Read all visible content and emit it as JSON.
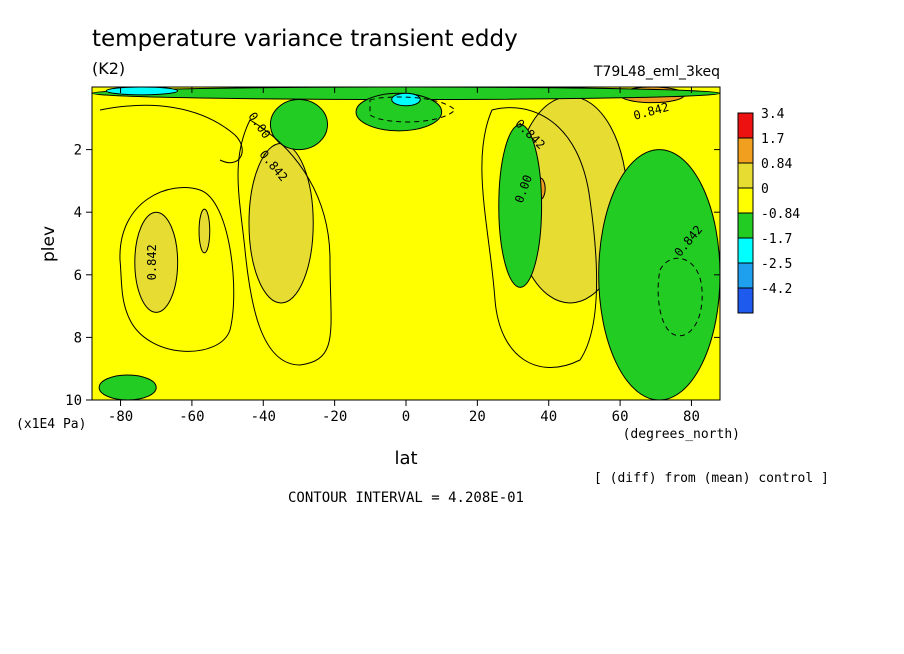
{
  "chart_data": {
    "type": "heatmap",
    "title": "temperature variance transient eddy",
    "units_label": "(K2)",
    "experiment_label": "T79L48_eml_3keq",
    "xlabel": "lat",
    "x_units": "(degrees_north)",
    "ylabel": "plev",
    "y_units": "(x1E4 Pa)",
    "xlim": [
      -88,
      88
    ],
    "ylim": [
      10,
      0
    ],
    "x_ticks": [
      -80,
      -60,
      -40,
      -20,
      0,
      20,
      40,
      60,
      80
    ],
    "y_ticks": [
      2,
      4,
      6,
      8,
      10
    ],
    "x_tick_labels": [
      "-80",
      "-60",
      "-40",
      "-20",
      "0",
      "20",
      "40",
      "60",
      "80"
    ],
    "y_tick_labels": [
      "2",
      "4",
      "6",
      "8",
      "10"
    ],
    "legend": {
      "placement": "right",
      "labels": [
        "3.4",
        "1.7",
        "0.84",
        "0",
        "-0.84",
        "-1.7",
        "-2.5",
        "-4.2"
      ],
      "colors": [
        "#ee1111",
        "#f0a01e",
        "#e6dc32",
        "#ffff00",
        "#22cc22",
        "#00ffff",
        "#1ea0ee",
        "#1e5aee"
      ]
    },
    "contour_labels": [
      "0.00",
      "0.842",
      "0.842",
      "0.00",
      "0.842",
      "0.842",
      "0.842",
      "0.00"
    ],
    "contour_interval": 0.4208,
    "regions": [
      {
        "level": "0.84 to 1.7",
        "lat": [
          -76,
          -64
        ],
        "plev": [
          4.0,
          7.2
        ]
      },
      {
        "level": "0.84 to 1.7",
        "lat": [
          -58,
          -55
        ],
        "plev": [
          3.9,
          5.3
        ]
      },
      {
        "level": "0.84 to 1.7",
        "lat": [
          -44,
          -26
        ],
        "plev": [
          1.8,
          6.9
        ]
      },
      {
        "level": "0.84 to 1.7",
        "lat": [
          30,
          62
        ],
        "plev": [
          0.3,
          6.9
        ]
      },
      {
        "level": "1.7 to 3.4",
        "lat": [
          36,
          39
        ],
        "plev": [
          2.9,
          3.6
        ]
      },
      {
        "level": "1.7 to 3.4",
        "lat": [
          60,
          78
        ],
        "plev": [
          0.0,
          0.5
        ]
      },
      {
        "level": "-0.84 to 0",
        "lat": [
          -88,
          88
        ],
        "plev": [
          0.0,
          0.4
        ]
      },
      {
        "level": "-0.84 to 0",
        "lat": [
          -14,
          10
        ],
        "plev": [
          0.2,
          1.4
        ]
      },
      {
        "level": "-0.84 to 0",
        "lat": [
          54,
          88
        ],
        "plev": [
          2.0,
          10.0
        ]
      },
      {
        "level": "-0.84 to 0",
        "lat": [
          26,
          38
        ],
        "plev": [
          1.2,
          6.4
        ]
      },
      {
        "level": "-0.84 to 0",
        "lat": [
          -38,
          -22
        ],
        "plev": [
          0.4,
          2.0
        ]
      },
      {
        "level": "-0.84 to 0",
        "lat": [
          -86,
          -70
        ],
        "plev": [
          9.2,
          10.0
        ]
      },
      {
        "level": "-1.7 to -0.84",
        "lat": [
          -4,
          4
        ],
        "plev": [
          0.2,
          0.6
        ]
      },
      {
        "level": "-1.7 to -0.84",
        "lat": [
          -84,
          -64
        ],
        "plev": [
          0.0,
          0.25
        ]
      }
    ],
    "footnote": "[ (diff) from (mean) control ]",
    "contour_interval_text": "CONTOUR INTERVAL = 4.208E-01"
  }
}
